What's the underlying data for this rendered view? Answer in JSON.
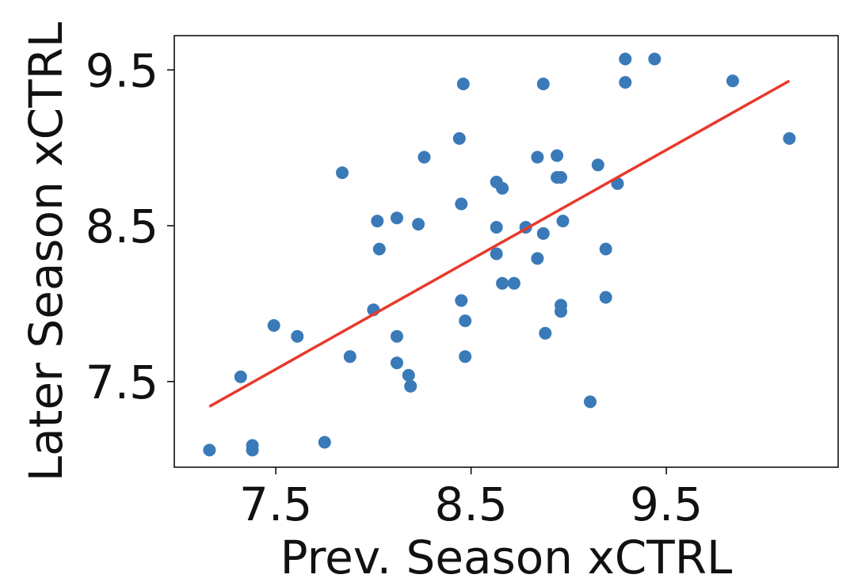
{
  "chart_data": {
    "type": "scatter",
    "title": "",
    "xlabel": "Prev. Season xCTRL",
    "ylabel": "Later Season xCTRL",
    "xlim": [
      6.98,
      10.38
    ],
    "ylim": [
      6.95,
      9.72
    ],
    "xticks": [
      7.5,
      8.5,
      9.5
    ],
    "xtick_labels": [
      "7.5",
      "8.5",
      "9.5"
    ],
    "yticks": [
      7.5,
      8.5,
      9.5
    ],
    "ytick_labels": [
      "7.5",
      "8.5",
      "9.5"
    ],
    "grid": false,
    "legend": "none",
    "marker_color": "#3a7ab8",
    "line_color": "#e8392a",
    "points": [
      {
        "x": 7.16,
        "y": 7.06
      },
      {
        "x": 7.32,
        "y": 7.53
      },
      {
        "x": 7.38,
        "y": 7.09
      },
      {
        "x": 7.38,
        "y": 7.06
      },
      {
        "x": 7.49,
        "y": 7.86
      },
      {
        "x": 7.61,
        "y": 7.79
      },
      {
        "x": 7.75,
        "y": 7.11
      },
      {
        "x": 7.84,
        "y": 8.84
      },
      {
        "x": 7.88,
        "y": 7.66
      },
      {
        "x": 8.0,
        "y": 7.96
      },
      {
        "x": 8.02,
        "y": 8.53
      },
      {
        "x": 8.03,
        "y": 8.35
      },
      {
        "x": 8.12,
        "y": 8.55
      },
      {
        "x": 8.12,
        "y": 7.79
      },
      {
        "x": 8.12,
        "y": 7.62
      },
      {
        "x": 8.18,
        "y": 7.54
      },
      {
        "x": 8.19,
        "y": 7.47
      },
      {
        "x": 8.23,
        "y": 8.51
      },
      {
        "x": 8.26,
        "y": 8.94
      },
      {
        "x": 8.44,
        "y": 9.06
      },
      {
        "x": 8.45,
        "y": 8.64
      },
      {
        "x": 8.45,
        "y": 8.02
      },
      {
        "x": 8.46,
        "y": 9.41
      },
      {
        "x": 8.47,
        "y": 7.89
      },
      {
        "x": 8.47,
        "y": 7.66
      },
      {
        "x": 8.63,
        "y": 8.78
      },
      {
        "x": 8.63,
        "y": 8.49
      },
      {
        "x": 8.63,
        "y": 8.32
      },
      {
        "x": 8.66,
        "y": 8.74
      },
      {
        "x": 8.66,
        "y": 8.13
      },
      {
        "x": 8.72,
        "y": 8.13
      },
      {
        "x": 8.78,
        "y": 8.49
      },
      {
        "x": 8.84,
        "y": 8.94
      },
      {
        "x": 8.84,
        "y": 8.29
      },
      {
        "x": 8.87,
        "y": 9.41
      },
      {
        "x": 8.87,
        "y": 8.45
      },
      {
        "x": 8.88,
        "y": 7.81
      },
      {
        "x": 8.94,
        "y": 8.95
      },
      {
        "x": 8.94,
        "y": 8.81
      },
      {
        "x": 8.96,
        "y": 8.81
      },
      {
        "x": 8.97,
        "y": 8.53
      },
      {
        "x": 8.96,
        "y": 7.99
      },
      {
        "x": 8.96,
        "y": 7.95
      },
      {
        "x": 9.11,
        "y": 7.37
      },
      {
        "x": 9.15,
        "y": 8.89
      },
      {
        "x": 9.19,
        "y": 8.35
      },
      {
        "x": 9.19,
        "y": 8.04
      },
      {
        "x": 9.25,
        "y": 8.77
      },
      {
        "x": 9.29,
        "y": 9.57
      },
      {
        "x": 9.29,
        "y": 9.42
      },
      {
        "x": 9.44,
        "y": 9.57
      },
      {
        "x": 9.84,
        "y": 9.43
      },
      {
        "x": 10.13,
        "y": 9.06
      }
    ],
    "trendline": {
      "x": [
        7.16,
        10.13
      ],
      "y": [
        7.34,
        9.43
      ]
    }
  }
}
